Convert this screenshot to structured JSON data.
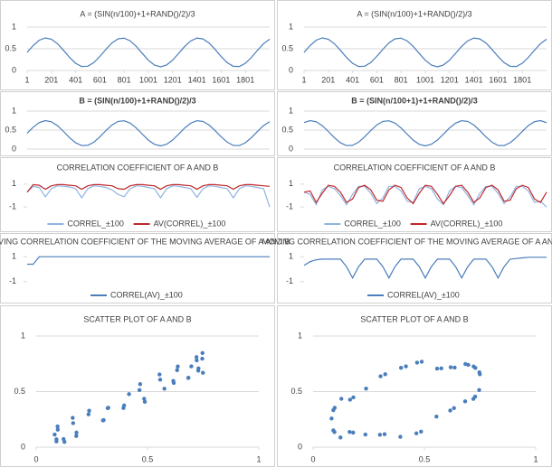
{
  "chart_data": [
    {
      "type": "line",
      "title": "A = (SIN(n/100)+1+RAND()/2)/3",
      "grid": true,
      "x": [
        1,
        51,
        101,
        151,
        201,
        251,
        301,
        351,
        401,
        451,
        501,
        551,
        601,
        651,
        701,
        751,
        801,
        851,
        901,
        951,
        1001,
        1051,
        1101,
        1151,
        1201,
        1251,
        1301,
        1351,
        1401,
        1451,
        1501,
        1551,
        1601,
        1651,
        1701,
        1751,
        1801,
        1851,
        1901,
        1951,
        2001
      ],
      "xlim": [
        1,
        2001
      ],
      "xticks": [
        1,
        201,
        401,
        601,
        801,
        1001,
        1201,
        1401,
        1601,
        1801
      ],
      "ylim": [
        0,
        1
      ],
      "yticks": [
        0,
        0.5,
        1
      ],
      "series": [
        {
          "color": "#4a7ebb",
          "values": [
            0.417,
            0.576,
            0.697,
            0.749,
            0.72,
            0.616,
            0.464,
            0.3,
            0.164,
            0.091,
            0.097,
            0.181,
            0.324,
            0.488,
            0.636,
            0.729,
            0.746,
            0.683,
            0.554,
            0.392,
            0.235,
            0.123,
            0.083,
            0.127,
            0.238,
            0.395,
            0.557,
            0.684,
            0.747,
            0.728,
            0.633,
            0.485,
            0.321,
            0.18,
            0.096,
            0.091,
            0.166,
            0.303,
            0.467,
            0.618,
            0.721
          ]
        }
      ]
    },
    {
      "type": "line",
      "title": "A = (SIN(n/100)+1+RAND()/2)/3",
      "grid": true,
      "x": [
        1,
        51,
        101,
        151,
        201,
        251,
        301,
        351,
        401,
        451,
        501,
        551,
        601,
        651,
        701,
        751,
        801,
        851,
        901,
        951,
        1001,
        1051,
        1101,
        1151,
        1201,
        1251,
        1301,
        1351,
        1401,
        1451,
        1501,
        1551,
        1601,
        1651,
        1701,
        1751,
        1801,
        1851,
        1901,
        1951,
        2001
      ],
      "xlim": [
        1,
        2001
      ],
      "xticks": [
        1,
        201,
        401,
        601,
        801,
        1001,
        1201,
        1401,
        1601,
        1801
      ],
      "ylim": [
        0,
        1
      ],
      "yticks": [
        0,
        0.5,
        1
      ],
      "series": [
        {
          "color": "#4a7ebb",
          "values": [
            0.417,
            0.576,
            0.697,
            0.749,
            0.72,
            0.616,
            0.464,
            0.3,
            0.164,
            0.091,
            0.097,
            0.181,
            0.324,
            0.488,
            0.636,
            0.729,
            0.746,
            0.683,
            0.554,
            0.392,
            0.235,
            0.123,
            0.083,
            0.127,
            0.238,
            0.395,
            0.557,
            0.684,
            0.747,
            0.728,
            0.633,
            0.485,
            0.321,
            0.18,
            0.096,
            0.091,
            0.166,
            0.303,
            0.467,
            0.618,
            0.721
          ]
        }
      ]
    },
    {
      "type": "line",
      "title": "B = (SIN(n/100)+1+RAND()/2)/3",
      "grid": true,
      "x": [
        1,
        51,
        101,
        151,
        201,
        251,
        301,
        351,
        401,
        451,
        501,
        551,
        601,
        651,
        701,
        751,
        801,
        851,
        901,
        951,
        1001,
        1051,
        1101,
        1151,
        1201,
        1251,
        1301,
        1351,
        1401,
        1451,
        1501,
        1551,
        1601,
        1651,
        1701,
        1751,
        1801,
        1851,
        1901,
        1951,
        2001
      ],
      "xlim": [
        1,
        2001
      ],
      "ylim": [
        0,
        1
      ],
      "yticks": [
        0,
        0.5,
        1
      ],
      "series": [
        {
          "color": "#4a7ebb",
          "values": [
            0.417,
            0.576,
            0.697,
            0.749,
            0.72,
            0.616,
            0.464,
            0.3,
            0.164,
            0.091,
            0.097,
            0.181,
            0.324,
            0.488,
            0.636,
            0.729,
            0.746,
            0.683,
            0.554,
            0.392,
            0.235,
            0.123,
            0.083,
            0.127,
            0.238,
            0.395,
            0.557,
            0.684,
            0.747,
            0.728,
            0.633,
            0.485,
            0.321,
            0.18,
            0.096,
            0.091,
            0.166,
            0.303,
            0.467,
            0.618,
            0.721
          ]
        }
      ]
    },
    {
      "type": "line",
      "title": "B = (SIN(n/100+1)+1+RAND()/2)/3",
      "grid": true,
      "x": [
        1,
        51,
        101,
        151,
        201,
        251,
        301,
        351,
        401,
        451,
        501,
        551,
        601,
        651,
        701,
        751,
        801,
        851,
        901,
        951,
        1001,
        1051,
        1101,
        1151,
        1201,
        1251,
        1301,
        1351,
        1401,
        1451,
        1501,
        1551,
        1601,
        1651,
        1701,
        1751,
        1801,
        1851,
        1901,
        1951,
        2001
      ],
      "xlim": [
        1,
        2001
      ],
      "ylim": [
        0,
        1
      ],
      "yticks": [
        0,
        0.5,
        1
      ],
      "series": [
        {
          "color": "#4a7ebb",
          "values": [
            0.697,
            0.749,
            0.72,
            0.616,
            0.464,
            0.3,
            0.164,
            0.091,
            0.097,
            0.181,
            0.324,
            0.488,
            0.636,
            0.729,
            0.746,
            0.683,
            0.554,
            0.392,
            0.235,
            0.123,
            0.083,
            0.127,
            0.238,
            0.395,
            0.557,
            0.684,
            0.747,
            0.728,
            0.633,
            0.485,
            0.321,
            0.18,
            0.096,
            0.091,
            0.166,
            0.303,
            0.467,
            0.618,
            0.721,
            0.749,
            0.696
          ]
        }
      ]
    },
    {
      "type": "line",
      "title": "CORRELATION COEFFICIENT OF A AND B",
      "grid": false,
      "legend": "bottom",
      "x": [
        1,
        51,
        101,
        151,
        201,
        251,
        301,
        351,
        401,
        451,
        501,
        551,
        601,
        651,
        701,
        751,
        801,
        851,
        901,
        951,
        1001,
        1051,
        1101,
        1151,
        1201,
        1251,
        1301,
        1351,
        1401,
        1451,
        1501,
        1551,
        1601,
        1651,
        1701,
        1751,
        1801,
        1851,
        1901,
        1951,
        2001
      ],
      "xlim": [
        1,
        2001
      ],
      "ylim": [
        -1.3,
        1.3
      ],
      "yticks": [
        -1,
        1
      ],
      "series": [
        {
          "name": "CORREL_±100",
          "color": "#8fb4e3",
          "values": [
            0.3,
            0.8,
            0.7,
            -0.1,
            0.6,
            0.85,
            0.8,
            0.75,
            0.6,
            -0.2,
            0.6,
            0.85,
            0.8,
            0.7,
            0.5,
            0.1,
            -0.1,
            0.6,
            0.85,
            0.8,
            0.7,
            0.6,
            -0.2,
            0.6,
            0.85,
            0.8,
            0.7,
            0.6,
            -0.15,
            0.6,
            0.85,
            0.8,
            0.7,
            0.6,
            -0.2,
            0.6,
            0.85,
            0.8,
            0.7,
            0.6,
            -1
          ]
        },
        {
          "name": "AV(CORREL)_±100",
          "color": "#c0282a",
          "values": [
            0.3,
            0.95,
            0.9,
            0.55,
            0.85,
            0.95,
            0.95,
            0.9,
            0.85,
            0.55,
            0.85,
            0.95,
            0.95,
            0.9,
            0.85,
            0.6,
            0.55,
            0.85,
            0.95,
            0.95,
            0.9,
            0.85,
            0.55,
            0.85,
            0.95,
            0.95,
            0.9,
            0.85,
            0.55,
            0.85,
            0.95,
            0.95,
            0.9,
            0.85,
            0.55,
            0.85,
            0.95,
            0.95,
            0.9,
            0.85,
            0.8
          ]
        }
      ]
    },
    {
      "type": "line",
      "title": "CORRELATION COEFFICIENT OF A AND B",
      "grid": false,
      "legend": "bottom",
      "x": [
        1,
        51,
        101,
        151,
        201,
        251,
        301,
        351,
        401,
        451,
        501,
        551,
        601,
        651,
        701,
        751,
        801,
        851,
        901,
        951,
        1001,
        1051,
        1101,
        1151,
        1201,
        1251,
        1301,
        1351,
        1401,
        1451,
        1501,
        1551,
        1601,
        1651,
        1701,
        1751,
        1801,
        1851,
        1901,
        1951,
        2001
      ],
      "xlim": [
        1,
        2001
      ],
      "ylim": [
        -1.3,
        1.3
      ],
      "yticks": [
        -1,
        1
      ],
      "series": [
        {
          "name": "CORREL_±100",
          "color": "#8fb4e3",
          "values": [
            0.3,
            0.1,
            -0.8,
            0.5,
            0.8,
            0.6,
            0.0,
            -0.8,
            0.1,
            0.8,
            0.8,
            0.2,
            -0.7,
            -0.2,
            0.8,
            0.8,
            0.4,
            -0.5,
            -0.6,
            0.6,
            0.8,
            0.6,
            -0.3,
            -0.8,
            0.4,
            0.8,
            0.7,
            0.0,
            -0.8,
            0.2,
            0.8,
            0.8,
            0.2,
            -0.7,
            -0.1,
            0.8,
            0.8,
            0.4,
            -0.6,
            -0.5,
            -1
          ]
        },
        {
          "name": "AV(CORREL)_±100",
          "color": "#c0282a",
          "values": [
            0.3,
            0.4,
            -0.6,
            0.2,
            0.9,
            0.8,
            0.3,
            -0.6,
            -0.3,
            0.7,
            0.9,
            0.5,
            -0.4,
            -0.5,
            0.5,
            0.9,
            0.7,
            -0.2,
            -0.7,
            0.2,
            0.9,
            0.8,
            0.1,
            -0.7,
            0.0,
            0.8,
            0.9,
            0.3,
            -0.6,
            -0.2,
            0.7,
            0.9,
            0.5,
            -0.5,
            -0.4,
            0.6,
            0.9,
            0.7,
            -0.3,
            -0.6,
            0.3
          ]
        }
      ]
    },
    {
      "type": "line",
      "title": "MOVING CORRELATION COEFFICIENT OF THE MOVING AVERAGE OF A AND B",
      "grid": false,
      "legend": "bottom",
      "x": [
        1,
        51,
        101,
        151,
        201,
        251,
        301,
        351,
        401,
        451,
        501,
        551,
        601,
        651,
        701,
        751,
        801,
        851,
        901,
        951,
        1001,
        1051,
        1101,
        1151,
        1201,
        1251,
        1301,
        1351,
        1401,
        1451,
        1501,
        1551,
        1601,
        1651,
        1701,
        1751,
        1801,
        1851,
        1901,
        1951,
        2001
      ],
      "xlim": [
        1,
        2001
      ],
      "ylim": [
        -1.3,
        1.3
      ],
      "yticks": [
        -1,
        1
      ],
      "series": [
        {
          "name": "CORREL(AV)_±100",
          "color": "#4a7ebb",
          "values": [
            0.4,
            0.4,
            1,
            1,
            1,
            1,
            1,
            1,
            1,
            1,
            1,
            1,
            1,
            1,
            1,
            1,
            1,
            1,
            1,
            1,
            1,
            1,
            1,
            1,
            1,
            1,
            1,
            1,
            1,
            1,
            1,
            1,
            1,
            1,
            1,
            1,
            1,
            1,
            1,
            1,
            1
          ]
        }
      ]
    },
    {
      "type": "line",
      "title": "MOVING CORRELATION COEFFICIENT OF THE MOVING AVERAGE OF A AND B",
      "grid": false,
      "legend": "bottom",
      "x": [
        1,
        51,
        101,
        151,
        201,
        251,
        301,
        351,
        401,
        451,
        501,
        551,
        601,
        651,
        701,
        751,
        801,
        851,
        901,
        951,
        1001,
        1051,
        1101,
        1151,
        1201,
        1251,
        1301,
        1351,
        1401,
        1451,
        1501,
        1551,
        1601,
        1651,
        1701,
        1751,
        1801,
        1851,
        1901,
        1951,
        2001
      ],
      "xlim": [
        1,
        2001
      ],
      "ylim": [
        -1.3,
        1.3
      ],
      "yticks": [
        -1,
        1
      ],
      "series": [
        {
          "name": "CORREL(AV)_±100",
          "color": "#4a7ebb",
          "values": [
            0.3,
            0.6,
            0.75,
            0.8,
            0.8,
            0.8,
            0.8,
            0.2,
            -0.7,
            0.2,
            0.8,
            0.8,
            0.8,
            0.2,
            -0.7,
            0.2,
            0.8,
            0.8,
            0.8,
            0.2,
            -0.7,
            0.2,
            0.8,
            0.8,
            0.8,
            0.2,
            -0.7,
            0.2,
            0.8,
            0.8,
            0.8,
            0.2,
            -0.7,
            0.2,
            0.8,
            0.85,
            0.9,
            0.95,
            0.95,
            0.95,
            0.95
          ]
        }
      ]
    },
    {
      "type": "scatter",
      "title": "SCATTER PLOT OF A AND B",
      "grid": true,
      "x": [
        0.417,
        0.576,
        0.697,
        0.749,
        0.72,
        0.616,
        0.464,
        0.3,
        0.164,
        0.091,
        0.097,
        0.181,
        0.324,
        0.488,
        0.636,
        0.729,
        0.746,
        0.683,
        0.554,
        0.392,
        0.235,
        0.123,
        0.083,
        0.127,
        0.238,
        0.395,
        0.557,
        0.684,
        0.747,
        0.728,
        0.633,
        0.485,
        0.321,
        0.18,
        0.096,
        0.091,
        0.166,
        0.303,
        0.467,
        0.618,
        0.721
      ],
      "xlim": [
        0,
        1
      ],
      "xticks": [
        0,
        0.5,
        1
      ],
      "ylim": [
        0,
        1
      ],
      "yticks": [
        0,
        0.5,
        1
      ],
      "series": [
        {
          "color": "#4a7ebb",
          "values": [
            0.477,
            0.526,
            0.727,
            0.669,
            0.81,
            0.596,
            0.514,
            0.24,
            0.264,
            0.051,
            0.157,
            0.131,
            0.354,
            0.408,
            0.726,
            0.709,
            0.796,
            0.623,
            0.654,
            0.352,
            0.295,
            0.073,
            0.113,
            0.047,
            0.328,
            0.375,
            0.607,
            0.624,
            0.847,
            0.688,
            0.693,
            0.435,
            0.351,
            0.1,
            0.186,
            0.071,
            0.216,
            0.243,
            0.567,
            0.578,
            0.781
          ]
        }
      ]
    },
    {
      "type": "scatter",
      "title": "SCATTER PLOT OF A AND B",
      "grid": true,
      "x": [
        0.417,
        0.576,
        0.697,
        0.749,
        0.72,
        0.616,
        0.464,
        0.3,
        0.164,
        0.091,
        0.097,
        0.181,
        0.324,
        0.488,
        0.636,
        0.729,
        0.746,
        0.683,
        0.554,
        0.392,
        0.235,
        0.123,
        0.083,
        0.127,
        0.238,
        0.395,
        0.557,
        0.684,
        0.747,
        0.728,
        0.633,
        0.485,
        0.321,
        0.18,
        0.096,
        0.091,
        0.166,
        0.303,
        0.467,
        0.618,
        0.721
      ],
      "xlim": [
        0,
        1
      ],
      "xticks": [
        0,
        0.5,
        1
      ],
      "ylim": [
        0,
        1
      ],
      "yticks": [
        0,
        0.5,
        1
      ],
      "series": [
        {
          "color": "#4a7ebb",
          "values": [
            0.727,
            0.709,
            0.74,
            0.656,
            0.434,
            0.33,
            0.124,
            0.111,
            0.137,
            0.151,
            0.354,
            0.448,
            0.656,
            0.769,
            0.716,
            0.713,
            0.514,
            0.412,
            0.275,
            0.093,
            0.113,
            0.087,
            0.258,
            0.435,
            0.527,
            0.714,
            0.707,
            0.748,
            0.673,
            0.455,
            0.351,
            0.14,
            0.116,
            0.131,
            0.136,
            0.333,
            0.427,
            0.638,
            0.761,
            0.719,
            0.726
          ]
        }
      ]
    }
  ]
}
